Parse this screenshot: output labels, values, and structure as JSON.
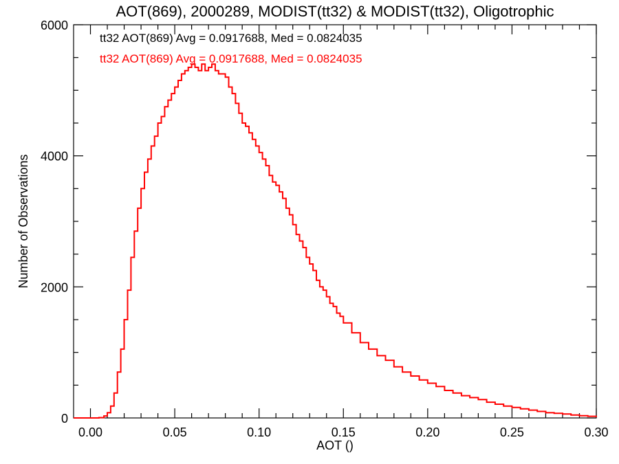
{
  "chart_data": {
    "type": "line",
    "title": "AOT(869), 2000289, MODIST(tt32) & MODIST(tt32), Oligotrophic",
    "xlabel": "AOT ()",
    "ylabel": "Number of Observations",
    "xlim": [
      -0.01,
      0.3
    ],
    "ylim": [
      0,
      6000
    ],
    "x_ticks": [
      0.0,
      0.05,
      0.1,
      0.15,
      0.2,
      0.25,
      0.3
    ],
    "x_tick_labels": [
      "0.00",
      "0.05",
      "0.10",
      "0.15",
      "0.20",
      "0.25",
      "0.30"
    ],
    "y_ticks": [
      0,
      2000,
      4000,
      6000
    ],
    "y_tick_labels": [
      "0",
      "2000",
      "4000",
      "6000"
    ],
    "grid": false,
    "annotations": [
      {
        "text": "tt32 AOT(869) Avg = 0.0917688, Med = 0.0824035",
        "color": "#000000"
      },
      {
        "text": "tt32 AOT(869) Avg = 0.0917688, Med = 0.0824035",
        "color": "#ff0000"
      }
    ],
    "series": [
      {
        "color": "#ff0000",
        "style": "step",
        "x": [
          -0.01,
          0.0,
          0.005,
          0.008,
          0.01,
          0.012,
          0.014,
          0.016,
          0.018,
          0.02,
          0.022,
          0.024,
          0.026,
          0.028,
          0.03,
          0.032,
          0.034,
          0.036,
          0.038,
          0.04,
          0.042,
          0.044,
          0.046,
          0.048,
          0.05,
          0.052,
          0.054,
          0.056,
          0.058,
          0.06,
          0.062,
          0.064,
          0.066,
          0.068,
          0.07,
          0.072,
          0.074,
          0.076,
          0.078,
          0.08,
          0.082,
          0.084,
          0.086,
          0.088,
          0.09,
          0.092,
          0.094,
          0.096,
          0.098,
          0.1,
          0.102,
          0.104,
          0.106,
          0.108,
          0.11,
          0.112,
          0.114,
          0.116,
          0.118,
          0.12,
          0.122,
          0.124,
          0.126,
          0.128,
          0.13,
          0.132,
          0.134,
          0.136,
          0.138,
          0.14,
          0.142,
          0.144,
          0.146,
          0.148,
          0.15,
          0.155,
          0.16,
          0.165,
          0.17,
          0.175,
          0.18,
          0.185,
          0.19,
          0.195,
          0.2,
          0.205,
          0.21,
          0.215,
          0.22,
          0.225,
          0.23,
          0.235,
          0.24,
          0.245,
          0.25,
          0.255,
          0.26,
          0.265,
          0.27,
          0.275,
          0.28,
          0.285,
          0.29,
          0.295,
          0.3
        ],
        "values": [
          0,
          0,
          5,
          30,
          80,
          180,
          380,
          700,
          1050,
          1500,
          1950,
          2450,
          2850,
          3200,
          3500,
          3750,
          3950,
          4150,
          4300,
          4500,
          4600,
          4750,
          4850,
          4950,
          5050,
          5150,
          5250,
          5300,
          5350,
          5400,
          5350,
          5300,
          5400,
          5300,
          5350,
          5400,
          5300,
          5250,
          5250,
          5200,
          5050,
          4950,
          4800,
          4650,
          4500,
          4450,
          4350,
          4250,
          4150,
          4050,
          3950,
          3850,
          3700,
          3600,
          3550,
          3450,
          3350,
          3200,
          3100,
          2950,
          2800,
          2700,
          2600,
          2450,
          2350,
          2250,
          2100,
          2000,
          1950,
          1850,
          1750,
          1700,
          1600,
          1550,
          1450,
          1300,
          1150,
          1050,
          950,
          880,
          780,
          700,
          640,
          580,
          530,
          480,
          420,
          380,
          340,
          310,
          280,
          240,
          210,
          180,
          160,
          140,
          120,
          100,
          80,
          70,
          60,
          45,
          35,
          25,
          15
        ]
      }
    ]
  }
}
